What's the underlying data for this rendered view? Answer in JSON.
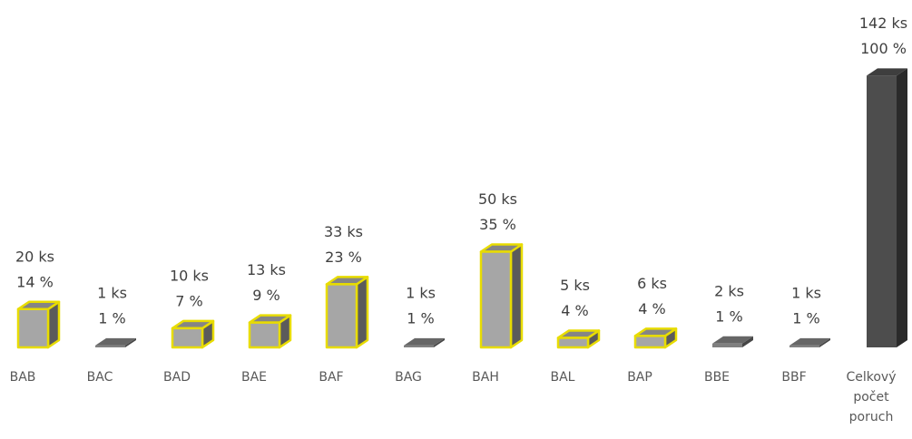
{
  "chart_data": {
    "type": "bar3d",
    "categories": [
      "BAB",
      "BAC",
      "BAD",
      "BAE",
      "BAF",
      "BAG",
      "BAH",
      "BAL",
      "BAP",
      "BBE",
      "BBF",
      "Celkový počet poruch"
    ],
    "values": [
      20,
      1,
      10,
      13,
      33,
      1,
      50,
      5,
      6,
      2,
      1,
      142
    ],
    "value_labels": [
      "20 ks",
      "1 ks",
      "10 ks",
      "13 ks",
      "33 ks",
      "1 ks",
      "50 ks",
      "5 ks",
      "6 ks",
      "2 ks",
      "1 ks",
      "142 ks"
    ],
    "percents": [
      14,
      1,
      7,
      9,
      23,
      1,
      35,
      4,
      4,
      1,
      1,
      100
    ],
    "percent_labels": [
      "14 %",
      "1 %",
      "7 %",
      "9 %",
      "23 %",
      "1 %",
      "35 %",
      "4 %",
      "4 %",
      "1 %",
      "1 %",
      "100 %"
    ],
    "colors": [
      "#a6a6a6",
      "#808080",
      "#a6a6a6",
      "#a6a6a6",
      "#a6a6a6",
      "#808080",
      "#a6a6a6",
      "#a6a6a6",
      "#a6a6a6",
      "#808080",
      "#808080",
      "#4d4d4d"
    ],
    "edge_colors": [
      "#e8dc00",
      null,
      "#e8dc00",
      "#e8dc00",
      "#e8dc00",
      null,
      "#e8dc00",
      "#e8dc00",
      "#e8dc00",
      null,
      null,
      null
    ]
  }
}
